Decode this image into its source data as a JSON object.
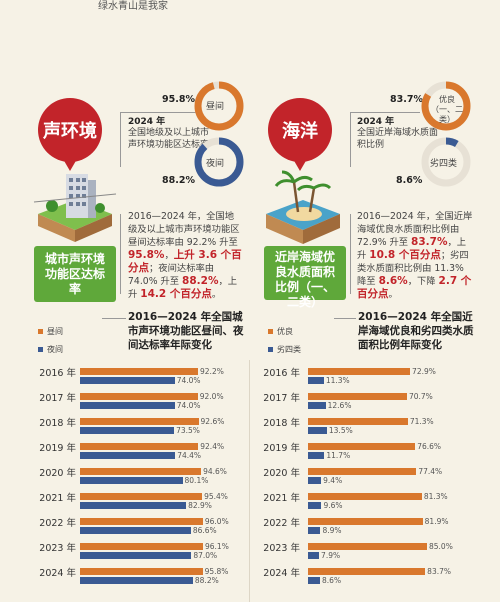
{
  "top_text": "绿水青山是我家",
  "colors": {
    "day": "#d9782d",
    "night": "#3a5a93",
    "accent_red": "#c2242a",
    "green": "#5fa83a"
  },
  "left": {
    "badge": "声环境",
    "green_label": "城市声环境功能区达标率",
    "pct_day": "95.8%",
    "pct_night": "88.2%",
    "ring_day_label": "昼间",
    "ring_night_label": "夜间",
    "ring_day_fraction": 0.958,
    "ring_night_fraction": 0.882,
    "year_label": "2024 年",
    "year_desc": "全国地级及以上城市声环境功能区达标率",
    "para": {
      "p1": "2016—2024 年，全国地级及以上城市声环境功能区昼间达标率由 92.2% 升至 ",
      "r1": "95.8%",
      "p2": "，",
      "r2": "上升 3.6 个百分点",
      "p3": "；夜间达标率由 74.0% 升至 ",
      "r3": "88.2%",
      "p4": "，上升 ",
      "r4": "14.2 个百分点",
      "p5": "。"
    },
    "chart_title": "2016—2024 年全国城市声环境功能区昼间、夜间达标率年际变化",
    "legend": [
      "昼间",
      "夜间"
    ]
  },
  "right": {
    "badge": "海洋",
    "green_label": "近岸海域优良水质面积比例（一、二类）",
    "pct_good": "83.7%",
    "pct_bad": "8.6%",
    "ring_good_label": "优良（一、二类）",
    "ring_bad_label": "劣四类",
    "ring_good_fraction": 0.837,
    "ring_bad_fraction": 0.086,
    "year_label": "2024 年",
    "year_desc": "全国近岸海域水质面积比例",
    "para": {
      "p1": "2016—2024 年，全国近岸海域优良水质面积比例由 72.9% 升至 ",
      "r1": "83.7%",
      "p2": "，上升 ",
      "r2": "10.8 个百分点",
      "p3": "；劣四类水质面积比例由 11.3% 降至 ",
      "r3": "8.6%",
      "p4": "，下降 ",
      "r4": "2.7 个百分点",
      "p5": "。"
    },
    "chart_title": "2016—2024 年全国近岸海域优良和劣四类水质面积比例年际变化",
    "legend": [
      "优良",
      "劣四类"
    ]
  },
  "chart_data": [
    {
      "type": "bar",
      "categories": [
        "2016 年",
        "2017 年",
        "2018 年",
        "2019 年",
        "2020 年",
        "2021 年",
        "2022 年",
        "2023 年",
        "2024 年"
      ],
      "series": [
        {
          "name": "昼间",
          "values": [
            92.2,
            92.0,
            92.6,
            92.4,
            94.6,
            95.4,
            96.0,
            96.1,
            95.8
          ]
        },
        {
          "name": "夜间",
          "values": [
            74.0,
            74.0,
            73.5,
            74.4,
            80.1,
            82.9,
            86.6,
            87.0,
            88.2
          ]
        }
      ],
      "xlim": [
        0,
        100
      ]
    },
    {
      "type": "bar",
      "categories": [
        "2016 年",
        "2017 年",
        "2018 年",
        "2019 年",
        "2020 年",
        "2021 年",
        "2022 年",
        "2023 年",
        "2024 年"
      ],
      "series": [
        {
          "name": "优良",
          "values": [
            72.9,
            70.7,
            71.3,
            76.6,
            77.4,
            81.3,
            81.9,
            85.0,
            83.7
          ]
        },
        {
          "name": "劣四类",
          "values": [
            11.3,
            12.6,
            13.5,
            11.7,
            9.4,
            9.6,
            8.9,
            7.9,
            8.6
          ]
        }
      ],
      "xlim": [
        0,
        100
      ]
    }
  ]
}
